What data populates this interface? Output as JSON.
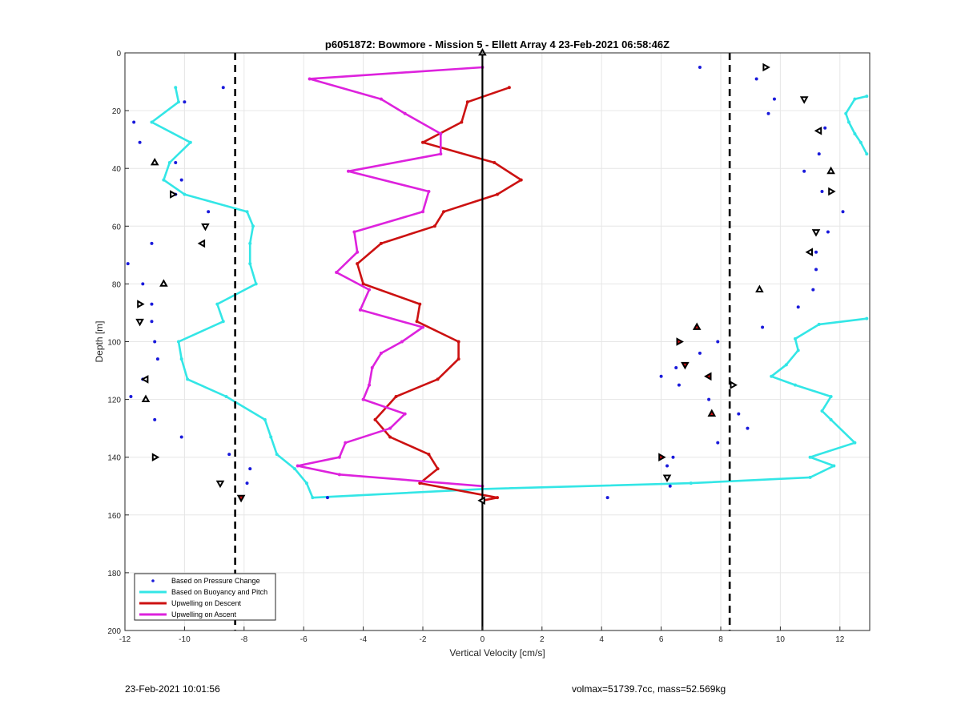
{
  "footer": {
    "left": "23-Feb-2021 10:01:56",
    "right": "volmax=51739.7cc, mass=52.569kg"
  },
  "colors": {
    "pressure": "#1a1adb",
    "buoyancy": "#33e6e6",
    "descent": "#cc1111",
    "ascent": "#dd22dd",
    "grid": "#e6e6e6",
    "axis": "#262626"
  },
  "chart_data": {
    "type": "line",
    "title": "p6051872: Bowmore - Mission 5 - Ellett Array 4 23-Feb-2021 06:58:46Z",
    "xlabel": "Vertical Velocity [cm/s]",
    "ylabel": "Depth [m]",
    "xlim": [
      -12,
      13
    ],
    "ylim": [
      0,
      200
    ],
    "y_reversed": true,
    "grid": true,
    "legend_location": "bottom-left",
    "xticks": [
      -12,
      -10,
      -8,
      -6,
      -4,
      -2,
      0,
      2,
      4,
      6,
      8,
      10,
      12
    ],
    "yticks": [
      0,
      20,
      40,
      60,
      80,
      100,
      120,
      140,
      160,
      180,
      200
    ],
    "reference_lines": {
      "zero_line": 0,
      "dashed_lines": [
        -8.3,
        8.3
      ]
    },
    "series": [
      {
        "name": "Based on Pressure Change",
        "style": "dots",
        "points": [
          [
            -8.7,
            12
          ],
          [
            -10,
            17
          ],
          [
            -11.7,
            24
          ],
          [
            -11.5,
            31
          ],
          [
            -10.3,
            38
          ],
          [
            -10.1,
            44
          ],
          [
            -10.3,
            49
          ],
          [
            -9.2,
            55
          ],
          [
            -9.3,
            60
          ],
          [
            -11.1,
            66
          ],
          [
            -11.9,
            73
          ],
          [
            -11.4,
            80
          ],
          [
            -11.1,
            87
          ],
          [
            -11.1,
            93
          ],
          [
            -11.0,
            100
          ],
          [
            -10.9,
            106
          ],
          [
            -11.4,
            113
          ],
          [
            -11.8,
            119
          ],
          [
            -11.0,
            127
          ],
          [
            -10.1,
            133
          ],
          [
            -8.5,
            139
          ],
          [
            -7.8,
            144
          ],
          [
            -7.9,
            149
          ],
          [
            -5.2,
            154
          ],
          [
            7.3,
            5
          ],
          [
            9.2,
            9
          ],
          [
            9.8,
            16
          ],
          [
            9.6,
            21
          ],
          [
            11.5,
            26
          ],
          [
            11.3,
            35
          ],
          [
            10.8,
            41
          ],
          [
            11.4,
            48
          ],
          [
            12.1,
            55
          ],
          [
            11.6,
            62
          ],
          [
            11.2,
            69
          ],
          [
            11.2,
            75
          ],
          [
            11.1,
            82
          ],
          [
            10.6,
            88
          ],
          [
            9.4,
            95
          ],
          [
            7.9,
            100
          ],
          [
            7.3,
            104
          ],
          [
            6.5,
            109
          ],
          [
            6.0,
            112
          ],
          [
            6.6,
            115
          ],
          [
            7.6,
            120
          ],
          [
            8.6,
            125
          ],
          [
            8.9,
            130
          ],
          [
            7.9,
            135
          ],
          [
            6.4,
            140
          ],
          [
            6.2,
            143
          ],
          [
            6.3,
            150
          ],
          [
            4.2,
            154
          ]
        ]
      },
      {
        "name": "Based on Buoyancy and Pitch",
        "style": "line",
        "points": [
          [
            -10.3,
            12
          ],
          [
            -10.2,
            17
          ],
          [
            -11.1,
            24
          ],
          [
            -9.8,
            31
          ],
          [
            -10.5,
            38
          ],
          [
            -10.7,
            44
          ],
          [
            -10.0,
            49
          ],
          [
            -7.9,
            55
          ],
          [
            -7.7,
            60
          ],
          [
            -7.8,
            66
          ],
          [
            -7.8,
            73
          ],
          [
            -7.6,
            80
          ],
          [
            -8.9,
            87
          ],
          [
            -8.7,
            93
          ],
          [
            -10.2,
            100
          ],
          [
            -10.1,
            106
          ],
          [
            -9.9,
            113
          ],
          [
            -8.6,
            119
          ],
          [
            -7.3,
            127
          ],
          [
            -7.1,
            133
          ],
          [
            -6.9,
            139
          ],
          [
            -6.3,
            144
          ],
          [
            -5.9,
            149
          ],
          [
            -5.7,
            154
          ],
          [
            0,
            151
          ],
          [
            7.0,
            149
          ],
          [
            11.0,
            147
          ],
          [
            11.8,
            143
          ],
          [
            11.0,
            140
          ],
          [
            12.5,
            135
          ],
          [
            11.7,
            127
          ],
          [
            11.4,
            124
          ],
          [
            11.7,
            119
          ],
          [
            10.5,
            115
          ],
          [
            9.7,
            112
          ],
          [
            10.2,
            108
          ],
          [
            10.6,
            103
          ],
          [
            10.5,
            99
          ],
          [
            11.3,
            94
          ],
          [
            12.9,
            92
          ]
        ]
      },
      {
        "name": "Buoyancy and Pitch (upper right)",
        "style": "line",
        "points": [
          [
            12.9,
            35
          ],
          [
            12.7,
            31
          ],
          [
            12.5,
            28
          ],
          [
            12.3,
            24
          ],
          [
            12.2,
            21
          ],
          [
            12.5,
            16
          ],
          [
            12.9,
            15
          ]
        ]
      },
      {
        "name": "Upwelling on Descent",
        "style": "line",
        "points": [
          [
            0.9,
            12
          ],
          [
            -0.5,
            17
          ],
          [
            -0.7,
            24
          ],
          [
            -2.0,
            31
          ],
          [
            0.4,
            38
          ],
          [
            1.3,
            44
          ],
          [
            0.5,
            49
          ],
          [
            -1.3,
            55
          ],
          [
            -1.6,
            60
          ],
          [
            -3.4,
            66
          ],
          [
            -4.2,
            73
          ],
          [
            -4.0,
            80
          ],
          [
            -2.1,
            87
          ],
          [
            -2.2,
            93
          ],
          [
            -0.8,
            100
          ],
          [
            -0.8,
            106
          ],
          [
            -1.5,
            113
          ],
          [
            -2.9,
            119
          ],
          [
            -3.6,
            127
          ],
          [
            -3.1,
            133
          ],
          [
            -1.8,
            139
          ],
          [
            -1.5,
            144
          ],
          [
            -2.1,
            149
          ],
          [
            0.5,
            154
          ],
          [
            0,
            155
          ]
        ]
      },
      {
        "name": "Upwelling on Ascent",
        "style": "line",
        "points": [
          [
            0,
            5
          ],
          [
            -5.8,
            9
          ],
          [
            -3.4,
            16
          ],
          [
            -2.6,
            21
          ],
          [
            -1.4,
            28
          ],
          [
            -1.4,
            35
          ],
          [
            -4.5,
            41
          ],
          [
            -1.8,
            48
          ],
          [
            -2.0,
            55
          ],
          [
            -4.3,
            62
          ],
          [
            -4.2,
            69
          ],
          [
            -4.9,
            76
          ],
          [
            -3.8,
            82
          ],
          [
            -4.1,
            89
          ],
          [
            -2.0,
            95
          ],
          [
            -2.7,
            100
          ],
          [
            -3.4,
            104
          ],
          [
            -3.7,
            109
          ],
          [
            -3.8,
            115
          ],
          [
            -4.0,
            120
          ],
          [
            -2.6,
            125
          ],
          [
            -3.1,
            130
          ],
          [
            -4.6,
            135
          ],
          [
            -4.8,
            140
          ],
          [
            -6.2,
            143
          ],
          [
            -4.8,
            146
          ],
          [
            0,
            150
          ]
        ]
      },
      {
        "name": "Markers (open triangles)",
        "style": "markers",
        "points": [
          [
            0,
            0
          ],
          [
            9.5,
            5
          ],
          [
            10.8,
            16
          ],
          [
            11.3,
            27
          ],
          [
            11.7,
            41
          ],
          [
            11.7,
            48
          ],
          [
            11.2,
            62
          ],
          [
            11.0,
            69
          ],
          [
            9.3,
            82
          ],
          [
            8.4,
            115
          ],
          [
            6.2,
            147
          ],
          [
            0,
            155
          ],
          [
            -11.0,
            38
          ],
          [
            -10.4,
            49
          ],
          [
            -9.3,
            60
          ],
          [
            -9.4,
            66
          ],
          [
            -10.7,
            80
          ],
          [
            -11.5,
            87
          ],
          [
            -11.5,
            93
          ],
          [
            -11.3,
            113
          ],
          [
            -11.3,
            120
          ],
          [
            -11.0,
            140
          ],
          [
            -8.8,
            149
          ]
        ]
      },
      {
        "name": "Markers (filled red)",
        "style": "markers-filled",
        "points": [
          [
            7.2,
            95
          ],
          [
            6.6,
            100
          ],
          [
            6.8,
            108
          ],
          [
            7.6,
            112
          ],
          [
            7.7,
            125
          ],
          [
            6.0,
            140
          ],
          [
            -8.1,
            154
          ]
        ]
      }
    ]
  },
  "legend": {
    "items": [
      "Based on Pressure Change",
      "Based on Buoyancy and Pitch",
      "Upwelling on Descent",
      "Upwelling on Ascent"
    ]
  }
}
